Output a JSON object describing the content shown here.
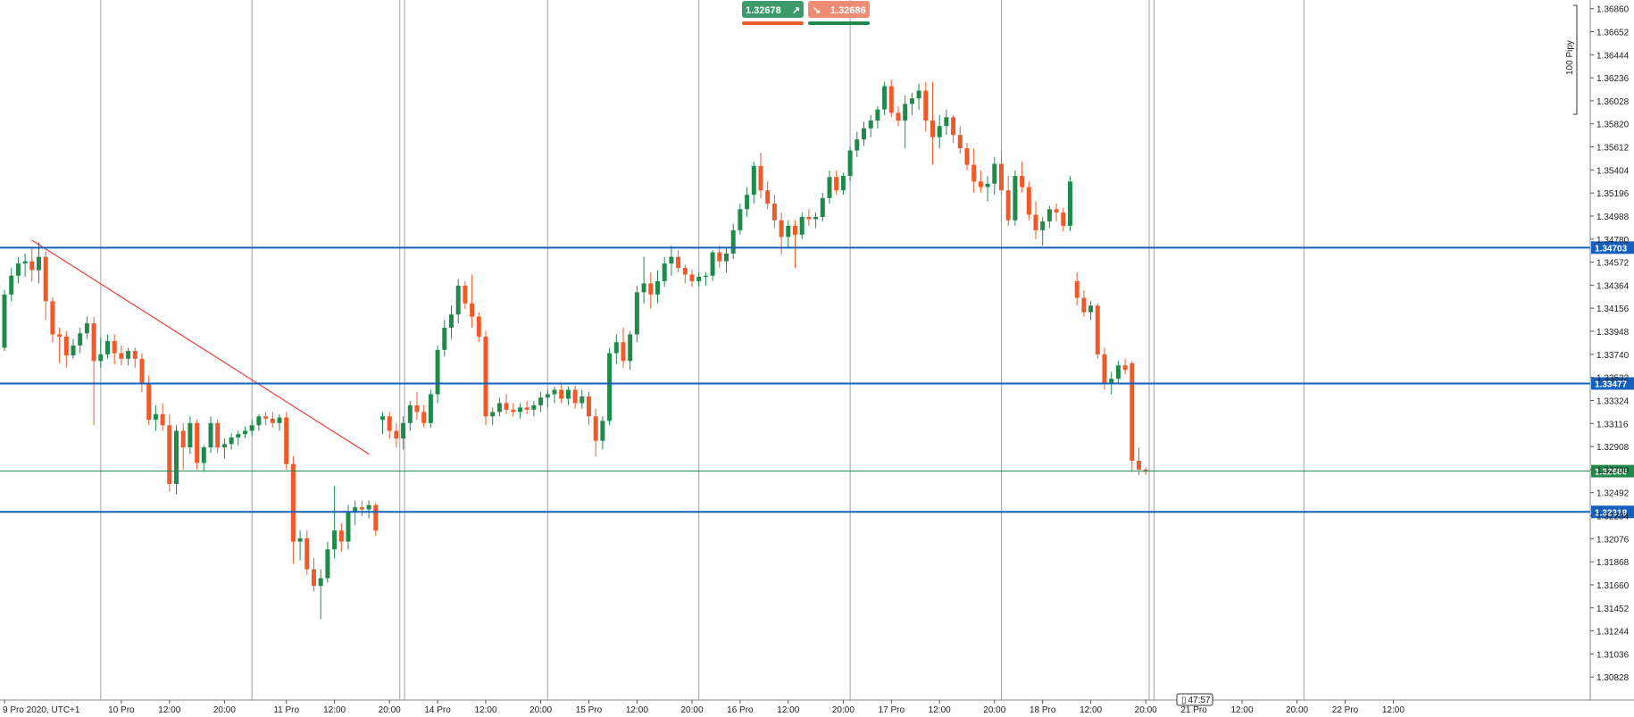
{
  "quote_panel": {
    "sell_price": "1.32678",
    "buy_price": "1.32686",
    "sell_color": "#3d9a6b",
    "buy_color": "#ef8d74",
    "sell_arrow_icon": "arrow-up-right-icon",
    "buy_arrow_icon": "arrow-down-right-icon"
  },
  "countdown": "47:57",
  "scale_label": "100 Pipy",
  "colors": {
    "bull": "#1f8a4c",
    "bear": "#f05a2b",
    "level_line": "#1560bd",
    "price_line": "#1f8a4c",
    "trend_line": "#ef3b3b",
    "separator": "#9ea3a8"
  },
  "chart_data": {
    "type": "candlestick",
    "instrument_timezone": "UTC+1",
    "ylim": [
      1.3062,
      1.36938
    ],
    "y_ticks": [
      "1.36860",
      "1.36652",
      "1.36444",
      "1.36236",
      "1.36028",
      "1.35820",
      "1.35612",
      "1.35404",
      "1.35196",
      "1.34988",
      "1.34780",
      "1.34572",
      "1.34364",
      "1.34156",
      "1.33948",
      "1.33740",
      "1.33532",
      "1.33324",
      "1.33116",
      "1.32908",
      "1.32700",
      "1.32492",
      "1.32284",
      "1.32076",
      "1.31868",
      "1.31660",
      "1.31452",
      "1.31244",
      "1.31036",
      "1.30828"
    ],
    "x_ticks": [
      {
        "label": "9 Pro 2020, UTC+1",
        "bar": 0
      },
      {
        "label": "10 Pro",
        "bar": 17
      },
      {
        "label": "12:00",
        "bar": 24
      },
      {
        "label": "20:00",
        "bar": 32
      },
      {
        "label": "11 Pro",
        "bar": 41
      },
      {
        "label": "12:00",
        "bar": 48
      },
      {
        "label": "20:00",
        "bar": 56
      },
      {
        "label": "14 Pro",
        "bar": 63
      },
      {
        "label": "12:00",
        "bar": 70
      },
      {
        "label": "20:00",
        "bar": 78
      },
      {
        "label": "15 Pro",
        "bar": 85
      },
      {
        "label": "12:00",
        "bar": 92
      },
      {
        "label": "20:00",
        "bar": 100
      },
      {
        "label": "16 Pro",
        "bar": 107
      },
      {
        "label": "12:00",
        "bar": 114
      },
      {
        "label": "20:00",
        "bar": 122
      },
      {
        "label": "17 Pro",
        "bar": 129
      },
      {
        "label": "12:00",
        "bar": 136
      },
      {
        "label": "20:00",
        "bar": 144
      },
      {
        "label": "18 Pro",
        "bar": 151
      },
      {
        "label": "12:00",
        "bar": 158
      },
      {
        "label": "20:00",
        "bar": 166
      },
      {
        "label": "21 Pro",
        "bar": 173
      },
      {
        "label": "12:00",
        "bar": 180
      },
      {
        "label": "20:00",
        "bar": 188
      },
      {
        "label": "22 Pro",
        "bar": 195
      },
      {
        "label": "12:00",
        "bar": 202
      }
    ],
    "separators_bar": [
      14,
      36,
      57.5,
      58.2,
      79,
      101,
      123,
      145,
      166.5,
      167.2,
      189
    ],
    "bar_first_x": 5,
    "bar_spacing": 7.7,
    "levels": [
      {
        "price": 1.34703,
        "label": "1.34703"
      },
      {
        "price": 1.33477,
        "label": "1.33477"
      },
      {
        "price": 1.32318,
        "label": "1.32318"
      }
    ],
    "current_price": {
      "price": 1.32686,
      "label": "1.32686"
    },
    "trend_line": [
      {
        "bar": 4,
        "price": 1.3477
      },
      {
        "bar": 53,
        "price": 1.3284
      }
    ],
    "ohlc": [
      [
        1.338,
        1.3432,
        1.3377,
        1.3428
      ],
      [
        1.3428,
        1.3452,
        1.3422,
        1.3445
      ],
      [
        1.3445,
        1.3462,
        1.3438,
        1.3456
      ],
      [
        1.3456,
        1.3465,
        1.3444,
        1.3458
      ],
      [
        1.3458,
        1.347,
        1.344,
        1.345
      ],
      [
        1.345,
        1.3475,
        1.3438,
        1.3462
      ],
      [
        1.3462,
        1.3467,
        1.3405,
        1.3422
      ],
      [
        1.3422,
        1.3425,
        1.3385,
        1.3392
      ],
      [
        1.3392,
        1.3398,
        1.3366,
        1.339
      ],
      [
        1.339,
        1.3395,
        1.3362,
        1.3373
      ],
      [
        1.3373,
        1.3388,
        1.337,
        1.3382
      ],
      [
        1.3382,
        1.3398,
        1.3375,
        1.3393
      ],
      [
        1.3393,
        1.3408,
        1.3388,
        1.3402
      ],
      [
        1.3402,
        1.3408,
        1.331,
        1.3368
      ],
      [
        1.3368,
        1.3389,
        1.3362,
        1.3374
      ],
      [
        1.3374,
        1.3392,
        1.337,
        1.3386
      ],
      [
        1.3386,
        1.3392,
        1.3365,
        1.3375
      ],
      [
        1.3375,
        1.3382,
        1.3364,
        1.337
      ],
      [
        1.337,
        1.338,
        1.3364,
        1.3377
      ],
      [
        1.3377,
        1.338,
        1.3362,
        1.337
      ],
      [
        1.337,
        1.3375,
        1.334,
        1.3348
      ],
      [
        1.3348,
        1.3355,
        1.331,
        1.3315
      ],
      [
        1.3315,
        1.3328,
        1.3305,
        1.332
      ],
      [
        1.332,
        1.333,
        1.3305,
        1.331
      ],
      [
        1.331,
        1.332,
        1.325,
        1.3257
      ],
      [
        1.3257,
        1.331,
        1.3248,
        1.3305
      ],
      [
        1.3305,
        1.3312,
        1.327,
        1.329
      ],
      [
        1.329,
        1.3318,
        1.3284,
        1.3312
      ],
      [
        1.3312,
        1.3315,
        1.327,
        1.3276
      ],
      [
        1.3276,
        1.3292,
        1.3268,
        1.329
      ],
      [
        1.329,
        1.3318,
        1.3285,
        1.3312
      ],
      [
        1.3312,
        1.3315,
        1.3285,
        1.329
      ],
      [
        1.329,
        1.3298,
        1.328,
        1.3293
      ],
      [
        1.3293,
        1.3303,
        1.3288,
        1.3299
      ],
      [
        1.3299,
        1.3305,
        1.3292,
        1.3302
      ],
      [
        1.3302,
        1.3309,
        1.3298,
        1.3305
      ],
      [
        1.3305,
        1.3315,
        1.33,
        1.331
      ],
      [
        1.331,
        1.332,
        1.3305,
        1.3318
      ],
      [
        1.3318,
        1.3322,
        1.331,
        1.3316
      ],
      [
        1.3316,
        1.3322,
        1.3308,
        1.3312
      ],
      [
        1.3312,
        1.332,
        1.3305,
        1.3317
      ],
      [
        1.3317,
        1.3322,
        1.327,
        1.3275
      ],
      [
        1.3275,
        1.3282,
        1.3185,
        1.3205
      ],
      [
        1.3205,
        1.3215,
        1.3188,
        1.3208
      ],
      [
        1.3208,
        1.3215,
        1.3175,
        1.318
      ],
      [
        1.318,
        1.319,
        1.316,
        1.3165
      ],
      [
        1.3165,
        1.318,
        1.3135,
        1.3172
      ],
      [
        1.3172,
        1.3205,
        1.3168,
        1.3198
      ],
      [
        1.3198,
        1.3255,
        1.319,
        1.3215
      ],
      [
        1.3215,
        1.3222,
        1.3196,
        1.3205
      ],
      [
        1.3205,
        1.3238,
        1.3198,
        1.3232
      ],
      [
        1.3232,
        1.3242,
        1.322,
        1.3236
      ],
      [
        1.3236,
        1.3242,
        1.3228,
        1.3234
      ],
      [
        1.3234,
        1.3242,
        1.3226,
        1.3238
      ],
      [
        1.3238,
        1.324,
        1.321,
        1.3215
      ],
      [
        1.3315,
        1.3322,
        1.3302,
        1.3318
      ],
      [
        1.3318,
        1.3322,
        1.3298,
        1.3305
      ],
      [
        1.3305,
        1.3312,
        1.329,
        1.3298
      ],
      [
        1.3298,
        1.3318,
        1.3288,
        1.3312
      ],
      [
        1.3312,
        1.3332,
        1.3305,
        1.3328
      ],
      [
        1.3328,
        1.334,
        1.3315,
        1.3322
      ],
      [
        1.3322,
        1.3328,
        1.3308,
        1.3312
      ],
      [
        1.3312,
        1.3342,
        1.3308,
        1.3338
      ],
      [
        1.3338,
        1.3382,
        1.333,
        1.3378
      ],
      [
        1.3378,
        1.3405,
        1.3372,
        1.3398
      ],
      [
        1.3398,
        1.3418,
        1.3388,
        1.341
      ],
      [
        1.341,
        1.3442,
        1.3402,
        1.3436
      ],
      [
        1.3436,
        1.344,
        1.3415,
        1.342
      ],
      [
        1.342,
        1.3446,
        1.3398,
        1.3408
      ],
      [
        1.3408,
        1.3412,
        1.3385,
        1.339
      ],
      [
        1.339,
        1.3395,
        1.331,
        1.3318
      ],
      [
        1.3318,
        1.3326,
        1.331,
        1.3322
      ],
      [
        1.3322,
        1.3335,
        1.3318,
        1.333
      ],
      [
        1.333,
        1.3338,
        1.332,
        1.3324
      ],
      [
        1.3324,
        1.333,
        1.3318,
        1.3322
      ],
      [
        1.3322,
        1.333,
        1.3316,
        1.3326
      ],
      [
        1.3326,
        1.3332,
        1.332,
        1.3324
      ],
      [
        1.3324,
        1.3332,
        1.3318,
        1.3328
      ],
      [
        1.3328,
        1.334,
        1.3322,
        1.3335
      ],
      [
        1.3335,
        1.3342,
        1.3326,
        1.3338
      ],
      [
        1.3338,
        1.3345,
        1.333,
        1.3342
      ],
      [
        1.3342,
        1.3347,
        1.333,
        1.3334
      ],
      [
        1.3334,
        1.3345,
        1.3328,
        1.3342
      ],
      [
        1.3342,
        1.3346,
        1.3325,
        1.333
      ],
      [
        1.333,
        1.3342,
        1.3325,
        1.3336
      ],
      [
        1.3336,
        1.334,
        1.331,
        1.3318
      ],
      [
        1.3318,
        1.3325,
        1.3282,
        1.3296
      ],
      [
        1.3296,
        1.3318,
        1.3288,
        1.3314
      ],
      [
        1.3314,
        1.338,
        1.331,
        1.3375
      ],
      [
        1.3375,
        1.3392,
        1.3365,
        1.3385
      ],
      [
        1.3385,
        1.3398,
        1.3362,
        1.3368
      ],
      [
        1.3368,
        1.3395,
        1.336,
        1.3392
      ],
      [
        1.3392,
        1.3436,
        1.3385,
        1.343
      ],
      [
        1.343,
        1.3462,
        1.342,
        1.3438
      ],
      [
        1.3438,
        1.3448,
        1.3415,
        1.3428
      ],
      [
        1.3428,
        1.345,
        1.342,
        1.344
      ],
      [
        1.344,
        1.3462,
        1.3435,
        1.3456
      ],
      [
        1.3456,
        1.3472,
        1.3445,
        1.3462
      ],
      [
        1.3462,
        1.3468,
        1.3448,
        1.3452
      ],
      [
        1.3452,
        1.3455,
        1.3438,
        1.3446
      ],
      [
        1.3446,
        1.345,
        1.3435,
        1.344
      ],
      [
        1.344,
        1.3448,
        1.3435,
        1.3444
      ],
      [
        1.3444,
        1.3448,
        1.3436,
        1.3445
      ],
      [
        1.3445,
        1.3468,
        1.344,
        1.3466
      ],
      [
        1.3466,
        1.3472,
        1.3452,
        1.3458
      ],
      [
        1.3458,
        1.347,
        1.3448,
        1.3465
      ],
      [
        1.3465,
        1.3492,
        1.346,
        1.3486
      ],
      [
        1.3486,
        1.351,
        1.3482,
        1.3505
      ],
      [
        1.3505,
        1.3525,
        1.3498,
        1.3518
      ],
      [
        1.3518,
        1.3548,
        1.351,
        1.3544
      ],
      [
        1.3544,
        1.3556,
        1.3515,
        1.3522
      ],
      [
        1.3522,
        1.353,
        1.3505,
        1.351
      ],
      [
        1.351,
        1.3518,
        1.3488,
        1.3495
      ],
      [
        1.3495,
        1.3502,
        1.3464,
        1.348
      ],
      [
        1.348,
        1.3495,
        1.347,
        1.349
      ],
      [
        1.349,
        1.3495,
        1.3452,
        1.3482
      ],
      [
        1.3482,
        1.3502,
        1.3478,
        1.3498
      ],
      [
        1.3498,
        1.3505,
        1.349,
        1.3496
      ],
      [
        1.3496,
        1.3502,
        1.3488,
        1.3498
      ],
      [
        1.3498,
        1.352,
        1.3494,
        1.3515
      ],
      [
        1.3515,
        1.354,
        1.351,
        1.3534
      ],
      [
        1.3534,
        1.354,
        1.3518,
        1.3522
      ],
      [
        1.3522,
        1.3538,
        1.3518,
        1.3535
      ],
      [
        1.3535,
        1.3562,
        1.353,
        1.3558
      ],
      [
        1.3558,
        1.3575,
        1.3552,
        1.3568
      ],
      [
        1.3568,
        1.3584,
        1.3562,
        1.3578
      ],
      [
        1.3578,
        1.359,
        1.357,
        1.3585
      ],
      [
        1.3585,
        1.3598,
        1.3578,
        1.3595
      ],
      [
        1.3595,
        1.362,
        1.359,
        1.3616
      ],
      [
        1.3616,
        1.3622,
        1.3588,
        1.3592
      ],
      [
        1.3592,
        1.3598,
        1.358,
        1.3585
      ],
      [
        1.3585,
        1.3608,
        1.356,
        1.36
      ],
      [
        1.36,
        1.361,
        1.359,
        1.3605
      ],
      [
        1.3605,
        1.3618,
        1.3595,
        1.3612
      ],
      [
        1.3612,
        1.362,
        1.3575,
        1.3585
      ],
      [
        1.3585,
        1.362,
        1.3545,
        1.357
      ],
      [
        1.357,
        1.359,
        1.356,
        1.358
      ],
      [
        1.358,
        1.3595,
        1.3572,
        1.3588
      ],
      [
        1.3588,
        1.359,
        1.3565,
        1.3572
      ],
      [
        1.3572,
        1.358,
        1.3555,
        1.356
      ],
      [
        1.356,
        1.3565,
        1.354,
        1.3545
      ],
      [
        1.3545,
        1.356,
        1.352,
        1.353
      ],
      [
        1.353,
        1.354,
        1.352,
        1.3525
      ],
      [
        1.3525,
        1.3535,
        1.3512,
        1.3528
      ],
      [
        1.3528,
        1.3552,
        1.3518,
        1.3546
      ],
      [
        1.3546,
        1.3558,
        1.3518,
        1.3522
      ],
      [
        1.3522,
        1.3535,
        1.349,
        1.3495
      ],
      [
        1.3495,
        1.354,
        1.349,
        1.3535
      ],
      [
        1.3535,
        1.3548,
        1.352,
        1.3525
      ],
      [
        1.3525,
        1.353,
        1.3495,
        1.35
      ],
      [
        1.35,
        1.3512,
        1.3478,
        1.3486
      ],
      [
        1.3486,
        1.3498,
        1.3472,
        1.3494
      ],
      [
        1.3494,
        1.3508,
        1.3488,
        1.3505
      ],
      [
        1.3505,
        1.351,
        1.3494,
        1.3502
      ],
      [
        1.3502,
        1.3506,
        1.3485,
        1.349
      ],
      [
        1.349,
        1.3535,
        1.3485,
        1.353
      ],
      [
        1.344,
        1.3448,
        1.3418,
        1.3425
      ],
      [
        1.3425,
        1.3432,
        1.3408,
        1.3412
      ],
      [
        1.3412,
        1.3422,
        1.3405,
        1.3418
      ],
      [
        1.3418,
        1.342,
        1.337,
        1.3374
      ],
      [
        1.3374,
        1.338,
        1.3342,
        1.3348
      ],
      [
        1.3348,
        1.3358,
        1.3338,
        1.3352
      ],
      [
        1.3352,
        1.3368,
        1.3348,
        1.3364
      ],
      [
        1.3364,
        1.337,
        1.3356,
        1.336
      ],
      [
        1.3366,
        1.3368,
        1.3268,
        1.3278
      ],
      [
        1.3278,
        1.329,
        1.3265,
        1.327
      ],
      [
        1.327,
        1.3272,
        1.3265,
        1.3268
      ]
    ]
  }
}
